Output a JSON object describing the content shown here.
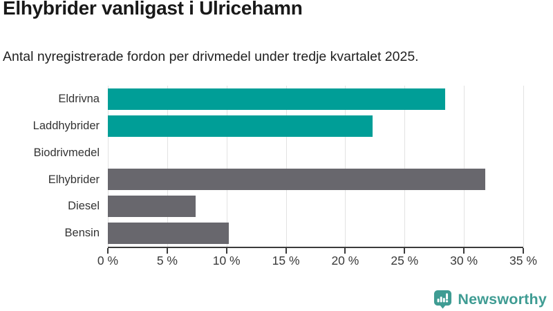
{
  "header": {
    "title": "Elhybrider vanligast i Ulricehamn",
    "subtitle": "Antal nyregistrerade fordon per drivmedel under tredje kvartalet 2025."
  },
  "chart_data": {
    "type": "bar",
    "orientation": "horizontal",
    "title": "Elhybrider vanligast i Ulricehamn",
    "subtitle": "Antal nyregistrerade fordon per drivmedel under tredje kvartalet 2025.",
    "categories": [
      "Eldrivna",
      "Laddhybrider",
      "Biodrivmedel",
      "Elhybrider",
      "Diesel",
      "Bensin"
    ],
    "values": [
      28.4,
      22.3,
      0,
      31.8,
      7.4,
      10.2
    ],
    "unit": "%",
    "xlim": [
      0,
      35
    ],
    "x_ticks": [
      0,
      5,
      10,
      15,
      20,
      25,
      30,
      35
    ],
    "x_tick_labels": [
      "0 %",
      "5 %",
      "10 %",
      "15 %",
      "20 %",
      "25 %",
      "30 %",
      "35 %"
    ],
    "bar_colors": [
      "#009E97",
      "#009E97",
      "#009E97",
      "#68676D",
      "#68676D",
      "#68676D"
    ],
    "grid": true,
    "colors": {
      "highlight": "#009E97",
      "default": "#68676D",
      "gridline": "#e2e2e2",
      "axis": "#3a3a3a"
    }
  },
  "footer": {
    "brand": "Newsworthy",
    "brand_color": "#3F9C93"
  }
}
